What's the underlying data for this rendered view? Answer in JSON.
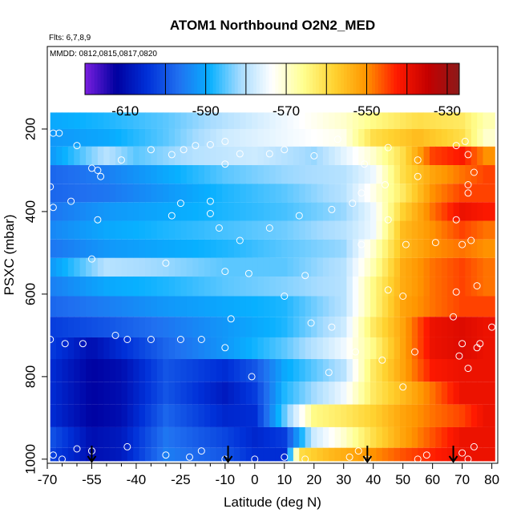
{
  "chart_data": {
    "type": "heatmap",
    "title": "ATOM1 Northbound O2N2_MED",
    "annotations": [
      "Flts: 6,7,8,9",
      "MMDD: 0812,0815,0817,0820"
    ],
    "xlabel": "Latitude (deg N)",
    "ylabel": "PSXC (mbar)",
    "xlim": [
      -70,
      82
    ],
    "ylim": [
      1010,
      0
    ],
    "x_ticks": [
      -70,
      -55,
      -40,
      -25,
      -10,
      0,
      10,
      20,
      30,
      40,
      50,
      60,
      70,
      80
    ],
    "x_tick_labels": [
      "-70",
      "-55",
      "-40",
      "-25",
      "-10",
      "0",
      "10",
      "20",
      "30",
      "40",
      "50",
      "60",
      "70",
      "80"
    ],
    "x_minor_ticks": [
      -65,
      -60,
      -50,
      -45,
      -35,
      -30,
      -20,
      -15,
      -5
    ],
    "y_ticks": [
      200,
      400,
      600,
      800,
      1000
    ],
    "y_tick_labels": [
      "200",
      "400",
      "600",
      "800",
      "1000"
    ],
    "colorbar": {
      "range": [
        -620,
        -527
      ],
      "ticks": [
        -610,
        -590,
        -570,
        -550,
        -530
      ],
      "tick_labels": [
        "-610",
        "-590",
        "-570",
        "-550",
        "-530"
      ],
      "boundaries": [
        -600,
        -590,
        -580,
        -570,
        -560,
        -550,
        -540,
        -530
      ],
      "colors": [
        "#7a1fe0",
        "#0000a0",
        "#0030d8",
        "#2070f0",
        "#08b0ff",
        "#a8dcff",
        "#ffffff",
        "#ffff90",
        "#ffd230",
        "#ff9600",
        "#ff1a00",
        "#c40000",
        "#8b1a1a"
      ]
    },
    "pressure_levels": [
      180,
      220,
      265,
      310,
      355,
      400,
      445,
      490,
      535,
      580,
      630,
      680,
      730,
      785,
      840,
      895,
      950,
      995
    ],
    "profiles": [
      {
        "pressure": 180,
        "points": [
          [
            -69,
            -590
          ],
          [
            -50,
            -588
          ],
          [
            -30,
            -585
          ],
          [
            -10,
            -580
          ],
          [
            10,
            -575
          ],
          [
            30,
            -570
          ],
          [
            40,
            -565
          ],
          [
            55,
            -560
          ],
          [
            70,
            -562
          ],
          [
            78,
            -568
          ]
        ]
      },
      {
        "pressure": 220,
        "points": [
          [
            -69,
            -592
          ],
          [
            -50,
            -590
          ],
          [
            -30,
            -585
          ],
          [
            -10,
            -578
          ],
          [
            10,
            -575
          ],
          [
            30,
            -572
          ],
          [
            40,
            -560
          ],
          [
            55,
            -555
          ],
          [
            70,
            -560
          ],
          [
            78,
            -570
          ]
        ]
      },
      {
        "pressure": 265,
        "points": [
          [
            -69,
            -592
          ],
          [
            -50,
            -580
          ],
          [
            -40,
            -585
          ],
          [
            -20,
            -580
          ],
          [
            0,
            -578
          ],
          [
            20,
            -582
          ],
          [
            40,
            -570
          ],
          [
            50,
            -560
          ],
          [
            60,
            -545
          ],
          [
            70,
            -542
          ],
          [
            78,
            -550
          ]
        ]
      },
      {
        "pressure": 310,
        "points": [
          [
            -69,
            -598
          ],
          [
            -50,
            -595
          ],
          [
            -30,
            -590
          ],
          [
            -10,
            -585
          ],
          [
            10,
            -582
          ],
          [
            30,
            -580
          ],
          [
            40,
            -575
          ],
          [
            50,
            -560
          ],
          [
            60,
            -552
          ],
          [
            70,
            -548
          ],
          [
            78,
            -545
          ]
        ]
      },
      {
        "pressure": 355,
        "points": [
          [
            -69,
            -598
          ],
          [
            -50,
            -596
          ],
          [
            -30,
            -592
          ],
          [
            -10,
            -588
          ],
          [
            10,
            -585
          ],
          [
            30,
            -580
          ],
          [
            40,
            -572
          ],
          [
            50,
            -562
          ],
          [
            60,
            -550
          ],
          [
            70,
            -545
          ],
          [
            78,
            -545
          ]
        ]
      },
      {
        "pressure": 400,
        "points": [
          [
            -69,
            -596
          ],
          [
            -50,
            -592
          ],
          [
            -30,
            -590
          ],
          [
            -10,
            -588
          ],
          [
            10,
            -586
          ],
          [
            30,
            -582
          ],
          [
            40,
            -575
          ],
          [
            50,
            -558
          ],
          [
            60,
            -548
          ],
          [
            70,
            -540
          ],
          [
            78,
            -542
          ]
        ]
      },
      {
        "pressure": 445,
        "points": [
          [
            -69,
            -594
          ],
          [
            -50,
            -590
          ],
          [
            -30,
            -588
          ],
          [
            -10,
            -586
          ],
          [
            10,
            -584
          ],
          [
            30,
            -580
          ],
          [
            40,
            -575
          ],
          [
            50,
            -555
          ],
          [
            60,
            -550
          ],
          [
            70,
            -545
          ],
          [
            78,
            -548
          ]
        ]
      },
      {
        "pressure": 490,
        "points": [
          [
            -69,
            -596
          ],
          [
            -50,
            -592
          ],
          [
            -30,
            -590
          ],
          [
            -10,
            -588
          ],
          [
            10,
            -585
          ],
          [
            30,
            -582
          ],
          [
            40,
            -570
          ],
          [
            50,
            -555
          ],
          [
            60,
            -550
          ],
          [
            70,
            -548
          ],
          [
            78,
            -550
          ]
        ]
      },
      {
        "pressure": 535,
        "points": [
          [
            -69,
            -592
          ],
          [
            -50,
            -580
          ],
          [
            -30,
            -582
          ],
          [
            -10,
            -585
          ],
          [
            10,
            -585
          ],
          [
            30,
            -580
          ],
          [
            40,
            -568
          ],
          [
            50,
            -553
          ],
          [
            60,
            -548
          ],
          [
            70,
            -545
          ],
          [
            78,
            -548
          ]
        ]
      },
      {
        "pressure": 580,
        "points": [
          [
            -69,
            -595
          ],
          [
            -50,
            -590
          ],
          [
            -30,
            -588
          ],
          [
            -10,
            -585
          ],
          [
            10,
            -583
          ],
          [
            30,
            -580
          ],
          [
            40,
            -565
          ],
          [
            50,
            -553
          ],
          [
            60,
            -548
          ],
          [
            70,
            -545
          ],
          [
            78,
            -548
          ]
        ]
      },
      {
        "pressure": 630,
        "points": [
          [
            -69,
            -598
          ],
          [
            -50,
            -595
          ],
          [
            -30,
            -592
          ],
          [
            -10,
            -590
          ],
          [
            10,
            -588
          ],
          [
            30,
            -580
          ],
          [
            40,
            -565
          ],
          [
            50,
            -552
          ],
          [
            60,
            -548
          ],
          [
            70,
            -545
          ],
          [
            78,
            -545
          ]
        ]
      },
      {
        "pressure": 680,
        "points": [
          [
            -69,
            -603
          ],
          [
            -50,
            -600
          ],
          [
            -30,
            -596
          ],
          [
            -10,
            -592
          ],
          [
            10,
            -588
          ],
          [
            30,
            -578
          ],
          [
            40,
            -562
          ],
          [
            50,
            -552
          ],
          [
            60,
            -540
          ],
          [
            70,
            -538
          ],
          [
            78,
            -540
          ]
        ]
      },
      {
        "pressure": 730,
        "points": [
          [
            -69,
            -603
          ],
          [
            -55,
            -610
          ],
          [
            -45,
            -605
          ],
          [
            -30,
            -598
          ],
          [
            -10,
            -592
          ],
          [
            10,
            -585
          ],
          [
            30,
            -575
          ],
          [
            40,
            -565
          ],
          [
            50,
            -552
          ],
          [
            60,
            -540
          ],
          [
            70,
            -538
          ],
          [
            78,
            -540
          ]
        ]
      },
      {
        "pressure": 785,
        "points": [
          [
            -69,
            -605
          ],
          [
            -55,
            -612
          ],
          [
            -45,
            -610
          ],
          [
            -30,
            -600
          ],
          [
            -10,
            -605
          ],
          [
            0,
            -600
          ],
          [
            10,
            -590
          ],
          [
            30,
            -580
          ],
          [
            40,
            -562
          ],
          [
            50,
            -552
          ],
          [
            60,
            -542
          ],
          [
            70,
            -540
          ],
          [
            78,
            -540
          ]
        ]
      },
      {
        "pressure": 840,
        "points": [
          [
            -69,
            -605
          ],
          [
            -55,
            -612
          ],
          [
            -45,
            -610
          ],
          [
            -30,
            -600
          ],
          [
            -10,
            -608
          ],
          [
            0,
            -603
          ],
          [
            10,
            -588
          ],
          [
            30,
            -575
          ],
          [
            40,
            -562
          ],
          [
            50,
            -555
          ],
          [
            60,
            -548
          ],
          [
            70,
            -540
          ],
          [
            78,
            -540
          ]
        ]
      },
      {
        "pressure": 895,
        "points": [
          [
            -69,
            -605
          ],
          [
            -55,
            -612
          ],
          [
            -45,
            -610
          ],
          [
            -30,
            -598
          ],
          [
            -10,
            -606
          ],
          [
            0,
            -605
          ],
          [
            10,
            -585
          ],
          [
            20,
            -565
          ],
          [
            30,
            -562
          ],
          [
            40,
            -558
          ],
          [
            50,
            -552
          ],
          [
            60,
            -548
          ],
          [
            70,
            -545
          ],
          [
            78,
            -540
          ]
        ]
      },
      {
        "pressure": 950,
        "points": [
          [
            -69,
            -600
          ],
          [
            -55,
            -610
          ],
          [
            -45,
            -608
          ],
          [
            -30,
            -596
          ],
          [
            -10,
            -602
          ],
          [
            0,
            -606
          ],
          [
            10,
            -603
          ],
          [
            20,
            -578
          ],
          [
            30,
            -570
          ],
          [
            40,
            -560
          ],
          [
            50,
            -552
          ],
          [
            60,
            -546
          ],
          [
            70,
            -540
          ],
          [
            78,
            -540
          ]
        ]
      },
      {
        "pressure": 995,
        "points": [
          [
            -69,
            -602
          ],
          [
            -55,
            -610
          ],
          [
            -45,
            -608
          ],
          [
            -30,
            -595
          ],
          [
            -10,
            -600
          ],
          [
            0,
            -605
          ],
          [
            10,
            -605
          ],
          [
            15,
            -560
          ],
          [
            25,
            -555
          ],
          [
            40,
            -550
          ],
          [
            50,
            -546
          ],
          [
            60,
            -543
          ],
          [
            70,
            -540
          ],
          [
            78,
            -540
          ]
        ]
      }
    ],
    "markers": [
      [
        -68,
        210
      ],
      [
        -66,
        210
      ],
      [
        -60,
        240
      ],
      [
        -55,
        295
      ],
      [
        -53,
        300
      ],
      [
        -52,
        315
      ],
      [
        -45,
        275
      ],
      [
        -35,
        250
      ],
      [
        -28,
        262
      ],
      [
        -24,
        250
      ],
      [
        -20,
        240
      ],
      [
        -15,
        238
      ],
      [
        -10,
        285
      ],
      [
        -10,
        230
      ],
      [
        -5,
        260
      ],
      [
        5,
        260
      ],
      [
        10,
        250
      ],
      [
        20,
        265
      ],
      [
        28,
        225
      ],
      [
        37,
        285
      ],
      [
        45,
        245
      ],
      [
        55,
        275
      ],
      [
        68,
        240
      ],
      [
        71,
        230
      ],
      [
        72,
        262
      ],
      [
        74,
        305
      ],
      [
        -69,
        340
      ],
      [
        -68,
        390
      ],
      [
        -62,
        375
      ],
      [
        -53,
        420
      ],
      [
        -28,
        410
      ],
      [
        -15,
        405
      ],
      [
        -12,
        440
      ],
      [
        -15,
        375
      ],
      [
        -25,
        380
      ],
      [
        -5,
        470
      ],
      [
        5,
        440
      ],
      [
        15,
        410
      ],
      [
        26,
        395
      ],
      [
        33,
        380
      ],
      [
        36,
        355
      ],
      [
        44,
        335
      ],
      [
        55,
        315
      ],
      [
        72,
        335
      ],
      [
        72,
        355
      ],
      [
        73,
        470
      ],
      [
        68,
        420
      ],
      [
        -55,
        515
      ],
      [
        -30,
        525
      ],
      [
        -10,
        545
      ],
      [
        -2,
        550
      ],
      [
        17,
        555
      ],
      [
        36,
        480
      ],
      [
        45,
        420
      ],
      [
        51,
        480
      ],
      [
        61,
        475
      ],
      [
        70,
        480
      ],
      [
        45,
        590
      ],
      [
        50,
        605
      ],
      [
        68,
        595
      ],
      [
        75,
        580
      ],
      [
        10,
        605
      ],
      [
        -69,
        710
      ],
      [
        -64,
        720
      ],
      [
        -58,
        720
      ],
      [
        -47,
        700
      ],
      [
        -43,
        710
      ],
      [
        -35,
        710
      ],
      [
        -25,
        710
      ],
      [
        -18,
        710
      ],
      [
        -10,
        730
      ],
      [
        -8,
        660
      ],
      [
        -1,
        800
      ],
      [
        19,
        670
      ],
      [
        26,
        680
      ],
      [
        34,
        740
      ],
      [
        43,
        760
      ],
      [
        54,
        740
      ],
      [
        67,
        655
      ],
      [
        70,
        720
      ],
      [
        76,
        720
      ],
      [
        75,
        730
      ],
      [
        80,
        680
      ],
      [
        69,
        750
      ],
      [
        72,
        780
      ],
      [
        25,
        790
      ],
      [
        50,
        825
      ],
      [
        -68,
        990
      ],
      [
        -65,
        1000
      ],
      [
        -60,
        975
      ],
      [
        -55,
        980
      ],
      [
        -43,
        970
      ],
      [
        -30,
        990
      ],
      [
        -22,
        995
      ],
      [
        -18,
        980
      ],
      [
        -10,
        1000
      ],
      [
        0,
        1000
      ],
      [
        10,
        995
      ],
      [
        17,
        1000
      ],
      [
        32,
        995
      ],
      [
        35,
        980
      ],
      [
        38,
        1000
      ],
      [
        55,
        1000
      ],
      [
        58,
        990
      ],
      [
        70,
        985
      ],
      [
        72,
        1000
      ],
      [
        74,
        970
      ]
    ],
    "arrows_x": [
      -55,
      -9,
      38,
      67
    ]
  }
}
